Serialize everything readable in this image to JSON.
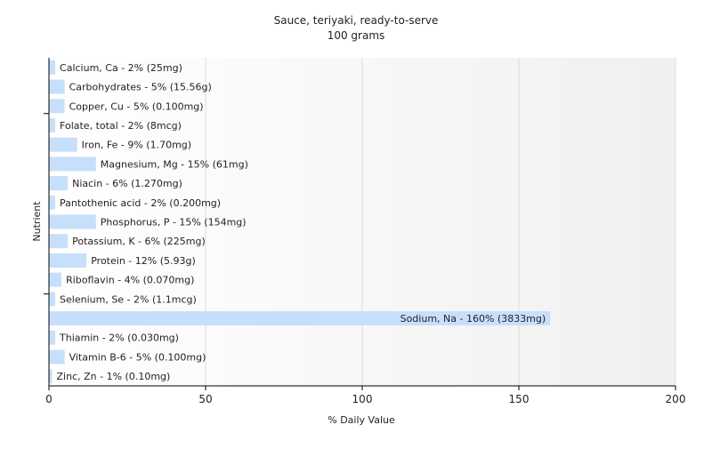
{
  "chart_data": {
    "type": "bar",
    "orientation": "horizontal",
    "title": "Sauce, teriyaki, ready-to-serve",
    "subtitle": "100 grams",
    "xlabel": "% Daily Value",
    "ylabel": "Nutrient",
    "xlim": [
      0,
      200
    ],
    "xticks": [
      0,
      50,
      100,
      150,
      200
    ],
    "grid": true,
    "bar_color": "#c6e0fb",
    "categories": [
      "Calcium, Ca",
      "Carbohydrates",
      "Copper, Cu",
      "Folate, total",
      "Iron, Fe",
      "Magnesium, Mg",
      "Niacin",
      "Pantothenic acid",
      "Phosphorus, P",
      "Potassium, K",
      "Protein",
      "Riboflavin",
      "Selenium, Se",
      "Sodium, Na",
      "Thiamin",
      "Vitamin B-6",
      "Zinc, Zn"
    ],
    "values": [
      2,
      5,
      5,
      2,
      9,
      15,
      6,
      2,
      15,
      6,
      12,
      4,
      2,
      160,
      2,
      5,
      1
    ],
    "bar_labels": [
      "Calcium, Ca - 2% (25mg)",
      "Carbohydrates - 5% (15.56g)",
      "Copper, Cu - 5% (0.100mg)",
      "Folate, total - 2% (8mcg)",
      "Iron, Fe - 9% (1.70mg)",
      "Magnesium, Mg - 15% (61mg)",
      "Niacin - 6% (1.270mg)",
      "Pantothenic acid - 2% (0.200mg)",
      "Phosphorus, P - 15% (154mg)",
      "Potassium, K - 6% (225mg)",
      "Protein - 12% (5.93g)",
      "Riboflavin - 4% (0.070mg)",
      "Selenium, Se - 2% (1.1mcg)",
      "Sodium, Na - 160% (3833mg)",
      "Thiamin - 2% (0.030mg)",
      "Vitamin B-6 - 5% (0.100mg)",
      "Zinc, Zn - 1% (0.10mg)"
    ]
  }
}
